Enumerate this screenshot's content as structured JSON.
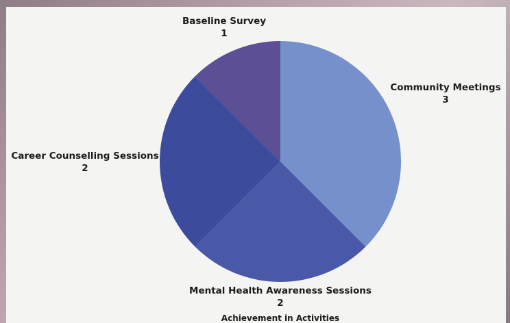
{
  "chart_data": {
    "type": "pie",
    "title": "Achievement in Activities",
    "slices": [
      {
        "label": "Community Meetings",
        "value": 3,
        "color": "#7590cb"
      },
      {
        "label": "Mental Health Awareness Sessions",
        "value": 2,
        "color": "#4a58a8"
      },
      {
        "label": "Career Counselling Sessions",
        "value": 2,
        "color": "#3c4b9c"
      },
      {
        "label": "Baseline Survey",
        "value": 1,
        "color": "#5d4f96"
      }
    ],
    "start_angle": "12 o'clock",
    "direction": "clockwise",
    "legend": "none"
  }
}
